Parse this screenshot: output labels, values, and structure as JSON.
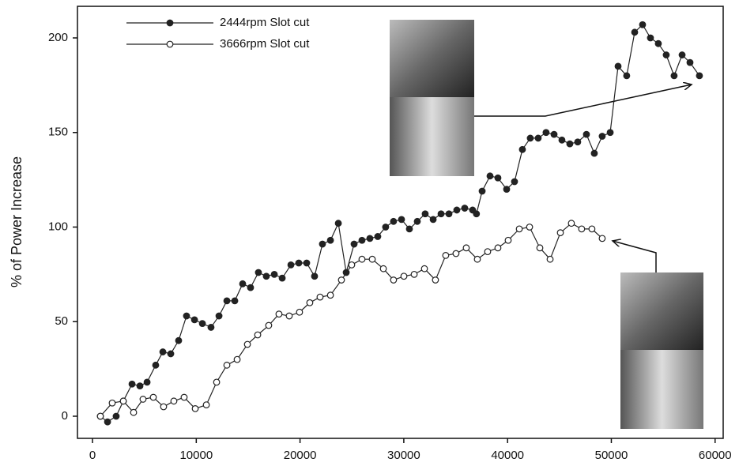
{
  "chart_data": {
    "type": "line",
    "y_label": "% of Power Increase",
    "xlim": [
      -1450,
      60780
    ],
    "ylim": [
      -11.7,
      216.7
    ],
    "xticks": [
      0,
      10000,
      20000,
      30000,
      40000,
      50000,
      60000
    ],
    "yticks": [
      0,
      50,
      100,
      150,
      200
    ],
    "legend": "upper left",
    "series": [
      {
        "name": "2444rpm Slot cut",
        "color": "#222",
        "marker": "filled",
        "x": [
          760,
          1450,
          2280,
          2970,
          3810,
          4570,
          5260,
          6090,
          6780,
          7540,
          8300,
          9060,
          9830,
          10590,
          11420,
          12190,
          12950,
          13710,
          14470,
          15230,
          15990,
          16750,
          17520,
          18280,
          19120,
          19880,
          20640,
          21400,
          22160,
          22930,
          23690,
          24450,
          25210,
          25970,
          26730,
          27490,
          28250,
          29010,
          29780,
          30540,
          31300,
          32060,
          32830,
          33590,
          34350,
          35110,
          35870,
          36630,
          37000,
          37550,
          38310,
          39070,
          39910,
          40670,
          41430,
          42190,
          42950,
          43710,
          44480,
          45240,
          46000,
          46760,
          47600,
          48360,
          49120,
          49890,
          50650,
          51480,
          52250,
          53010,
          53770,
          54530,
          55290,
          56050,
          56820,
          57580,
          58490
        ],
        "values": [
          0,
          -3,
          0,
          8,
          17,
          16,
          18,
          27,
          34,
          33,
          40,
          53,
          51,
          49,
          47,
          53,
          61,
          61,
          70,
          68,
          76,
          74,
          75,
          73,
          80,
          81,
          81,
          74,
          91,
          93,
          102,
          76,
          91,
          93,
          94,
          95,
          100,
          103,
          104,
          99,
          103,
          107,
          104,
          107,
          107,
          109,
          110,
          109,
          107,
          119,
          127,
          126,
          120,
          124,
          141,
          147,
          147,
          150,
          149,
          146,
          144,
          145,
          149,
          139,
          148,
          150,
          185,
          180,
          203,
          207,
          200,
          197,
          191,
          180,
          191,
          187,
          180
        ]
      },
      {
        "name": "3666rpm Slot cut",
        "color": "#222",
        "marker": "open",
        "x": [
          760,
          1900,
          2970,
          3960,
          4870,
          5860,
          6850,
          7840,
          8830,
          9900,
          10970,
          11960,
          12950,
          13940,
          14930,
          15920,
          16980,
          17970,
          18960,
          19950,
          20940,
          21930,
          22930,
          23990,
          24980,
          25970,
          26960,
          28030,
          29010,
          30010,
          31000,
          31990,
          33050,
          34040,
          35030,
          36020,
          37090,
          38080,
          39070,
          40060,
          41130,
          42120,
          43110,
          44100,
          45090,
          46150,
          47140,
          48130,
          49120
        ],
        "values": [
          0,
          7,
          8,
          2,
          9,
          10,
          5,
          8,
          10,
          4,
          6,
          18,
          27,
          30,
          38,
          43,
          48,
          54,
          53,
          55,
          60,
          63,
          64,
          72,
          80,
          83,
          83,
          78,
          72,
          74,
          75,
          78,
          72,
          85,
          86,
          89,
          83,
          87,
          89,
          93,
          99,
          100,
          89,
          83,
          97,
          102,
          99,
          99,
          94
        ]
      }
    ]
  }
}
